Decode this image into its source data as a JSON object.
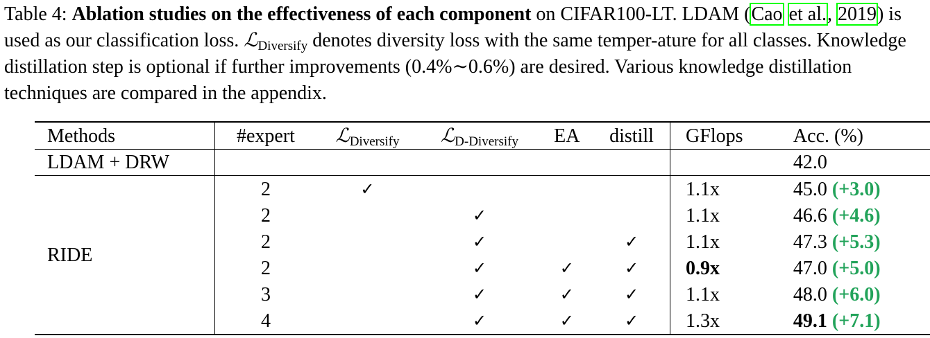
{
  "caption": {
    "label": "Table 4:",
    "title": "Ablation studies on the effectiveness of each component",
    "text1": " on CIFAR100-LT. LDAM (",
    "cite_author_1": "Cao",
    "cite_author_2": "et al.",
    "cite_sep": ", ",
    "cite_year": "2019",
    "text2": ") is used as our classification loss. ",
    "loss_symbol": "ℒ",
    "loss_sub": "Diversify",
    "text3": " denotes diversity loss with the same temper-ature for all classes. Knowledge distillation step is optional if further improvements (0.4%∼0.6%) are desired. Various knowledge distillation techniques are compared in the appendix."
  },
  "table": {
    "headers": {
      "methods": "Methods",
      "expert": "#expert",
      "div_symbol": "ℒ",
      "div_sub": "Diversify",
      "ddiv_symbol": "ℒ",
      "ddiv_sub": "D-Diversify",
      "ea": "EA",
      "distill": "distill",
      "gflops": "GFlops",
      "acc": "Acc. (%)"
    },
    "baseline": {
      "method": "LDAM + DRW",
      "acc": "42.0"
    },
    "ride_label": "RIDE",
    "check_glyph": "✓",
    "rows": [
      {
        "expert": "2",
        "diversify": true,
        "d_diversify": false,
        "ea": false,
        "distill": false,
        "gflops": "1.1x",
        "gflops_bold": false,
        "acc": "45.0",
        "acc_bold": false,
        "gain": "(+3.0)"
      },
      {
        "expert": "2",
        "diversify": false,
        "d_diversify": true,
        "ea": false,
        "distill": false,
        "gflops": "1.1x",
        "gflops_bold": false,
        "acc": "46.6",
        "acc_bold": false,
        "gain": "(+4.6)"
      },
      {
        "expert": "2",
        "diversify": false,
        "d_diversify": true,
        "ea": false,
        "distill": true,
        "gflops": "1.1x",
        "gflops_bold": false,
        "acc": "47.3",
        "acc_bold": false,
        "gain": "(+5.3)"
      },
      {
        "expert": "2",
        "diversify": false,
        "d_diversify": true,
        "ea": true,
        "distill": true,
        "gflops": "0.9x",
        "gflops_bold": true,
        "acc": "47.0",
        "acc_bold": false,
        "gain": "(+5.0)"
      },
      {
        "expert": "3",
        "diversify": false,
        "d_diversify": true,
        "ea": true,
        "distill": true,
        "gflops": "1.1x",
        "gflops_bold": false,
        "acc": "48.0",
        "acc_bold": false,
        "gain": "(+6.0)"
      },
      {
        "expert": "4",
        "diversify": false,
        "d_diversify": true,
        "ea": true,
        "distill": true,
        "gflops": "1.3x",
        "gflops_bold": false,
        "acc": "49.1",
        "acc_bold": true,
        "gain": "(+7.1)"
      }
    ],
    "gain_color": "#22a35a",
    "cite_box_color": "#00ff00"
  }
}
